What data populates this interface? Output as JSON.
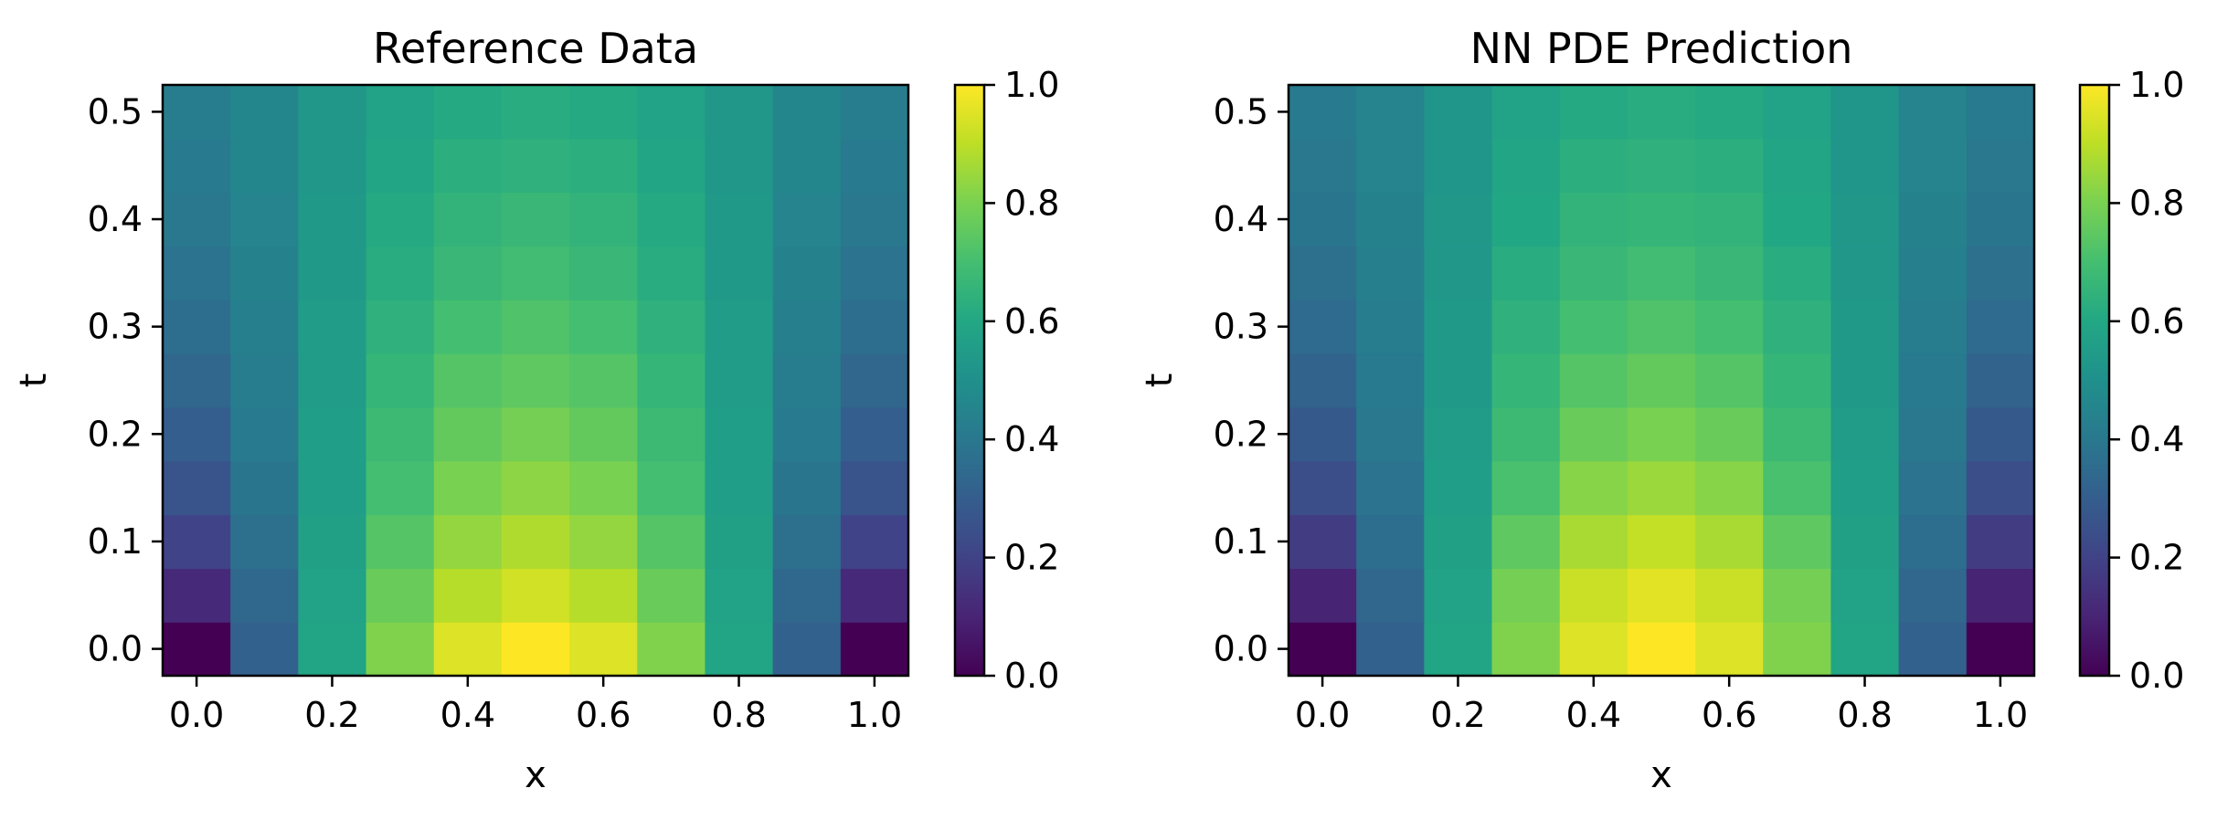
{
  "chart_data": [
    {
      "type": "heatmap",
      "title": "Reference Data",
      "xlabel": "x",
      "ylabel": "t",
      "x": [
        0.0,
        0.1,
        0.2,
        0.3,
        0.4,
        0.5,
        0.6,
        0.7,
        0.8,
        0.9,
        1.0
      ],
      "y": [
        0.0,
        0.05,
        0.1,
        0.15,
        0.2,
        0.25,
        0.3,
        0.35,
        0.4,
        0.45,
        0.5
      ],
      "xticks": [
        "0.0",
        "0.2",
        "0.4",
        "0.6",
        "0.8",
        "1.0"
      ],
      "yticks": [
        "0.0",
        "0.1",
        "0.2",
        "0.3",
        "0.4",
        "0.5"
      ],
      "colormap": "viridis",
      "clim": [
        0.0,
        1.0
      ],
      "colorbar_ticks": [
        "0.0",
        "0.2",
        "0.4",
        "0.6",
        "0.8",
        "1.0"
      ],
      "values": [
        [
          0.0,
          0.31,
          0.59,
          0.81,
          0.95,
          1.0,
          0.95,
          0.81,
          0.59,
          0.31,
          0.0
        ],
        [
          0.12,
          0.34,
          0.58,
          0.77,
          0.89,
          0.93,
          0.89,
          0.77,
          0.58,
          0.34,
          0.12
        ],
        [
          0.2,
          0.37,
          0.57,
          0.73,
          0.84,
          0.88,
          0.84,
          0.73,
          0.57,
          0.37,
          0.2
        ],
        [
          0.26,
          0.39,
          0.56,
          0.7,
          0.8,
          0.83,
          0.8,
          0.7,
          0.56,
          0.39,
          0.26
        ],
        [
          0.3,
          0.41,
          0.56,
          0.68,
          0.76,
          0.79,
          0.76,
          0.68,
          0.56,
          0.41,
          0.3
        ],
        [
          0.33,
          0.42,
          0.55,
          0.66,
          0.73,
          0.75,
          0.73,
          0.66,
          0.55,
          0.42,
          0.33
        ],
        [
          0.36,
          0.43,
          0.55,
          0.64,
          0.7,
          0.72,
          0.7,
          0.64,
          0.55,
          0.43,
          0.36
        ],
        [
          0.38,
          0.44,
          0.54,
          0.62,
          0.67,
          0.69,
          0.67,
          0.62,
          0.54,
          0.44,
          0.38
        ],
        [
          0.4,
          0.45,
          0.54,
          0.61,
          0.65,
          0.67,
          0.65,
          0.61,
          0.54,
          0.45,
          0.4
        ],
        [
          0.41,
          0.46,
          0.53,
          0.59,
          0.63,
          0.64,
          0.63,
          0.59,
          0.53,
          0.46,
          0.41
        ],
        [
          0.42,
          0.46,
          0.53,
          0.58,
          0.61,
          0.62,
          0.61,
          0.58,
          0.53,
          0.46,
          0.42
        ]
      ]
    },
    {
      "type": "heatmap",
      "title": "NN PDE Prediction",
      "xlabel": "x",
      "ylabel": "t",
      "x": [
        0.0,
        0.1,
        0.2,
        0.3,
        0.4,
        0.5,
        0.6,
        0.7,
        0.8,
        0.9,
        1.0
      ],
      "y": [
        0.0,
        0.05,
        0.1,
        0.15,
        0.2,
        0.25,
        0.3,
        0.35,
        0.4,
        0.45,
        0.5
      ],
      "xticks": [
        "0.0",
        "0.2",
        "0.4",
        "0.6",
        "0.8",
        "1.0"
      ],
      "yticks": [
        "0.0",
        "0.1",
        "0.2",
        "0.3",
        "0.4",
        "0.5"
      ],
      "colormap": "viridis",
      "clim": [
        0.0,
        1.0
      ],
      "colorbar_ticks": [
        "0.0",
        "0.2",
        "0.4",
        "0.6",
        "0.8",
        "1.0"
      ],
      "values": [
        [
          0.0,
          0.31,
          0.59,
          0.81,
          0.95,
          1.0,
          0.95,
          0.81,
          0.59,
          0.31,
          0.0
        ],
        [
          0.1,
          0.33,
          0.58,
          0.79,
          0.92,
          0.96,
          0.92,
          0.79,
          0.58,
          0.33,
          0.1
        ],
        [
          0.18,
          0.36,
          0.57,
          0.75,
          0.87,
          0.91,
          0.87,
          0.75,
          0.57,
          0.36,
          0.18
        ],
        [
          0.24,
          0.38,
          0.56,
          0.71,
          0.82,
          0.85,
          0.82,
          0.71,
          0.56,
          0.38,
          0.24
        ],
        [
          0.28,
          0.4,
          0.55,
          0.68,
          0.77,
          0.8,
          0.77,
          0.68,
          0.55,
          0.4,
          0.28
        ],
        [
          0.32,
          0.41,
          0.54,
          0.66,
          0.73,
          0.76,
          0.73,
          0.66,
          0.54,
          0.41,
          0.32
        ],
        [
          0.35,
          0.42,
          0.54,
          0.64,
          0.7,
          0.72,
          0.7,
          0.64,
          0.54,
          0.42,
          0.35
        ],
        [
          0.37,
          0.43,
          0.53,
          0.62,
          0.67,
          0.69,
          0.67,
          0.62,
          0.53,
          0.43,
          0.37
        ],
        [
          0.39,
          0.44,
          0.53,
          0.6,
          0.65,
          0.66,
          0.65,
          0.6,
          0.53,
          0.44,
          0.39
        ],
        [
          0.4,
          0.45,
          0.52,
          0.59,
          0.63,
          0.64,
          0.63,
          0.59,
          0.52,
          0.45,
          0.4
        ],
        [
          0.41,
          0.45,
          0.52,
          0.58,
          0.61,
          0.62,
          0.61,
          0.58,
          0.52,
          0.45,
          0.41
        ]
      ]
    }
  ]
}
